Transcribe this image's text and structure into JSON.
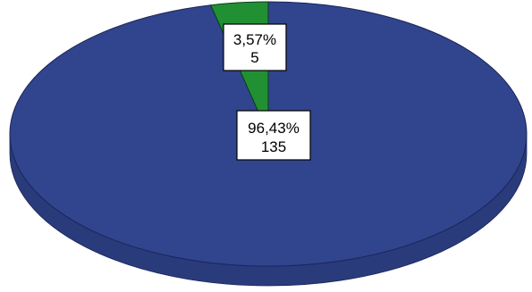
{
  "chart_data": {
    "type": "pie",
    "style": "3d",
    "slices": [
      {
        "percent_label": "96,43%",
        "count_label": "135",
        "value": 135,
        "percent": 96.43,
        "color": "#31448e",
        "side_color": "#2a3b7c"
      },
      {
        "percent_label": "3,57%",
        "count_label": "5",
        "value": 5,
        "percent": 3.57,
        "color": "#219033",
        "side_color": "#1a7a2a"
      }
    ],
    "title": "",
    "legend": "none"
  }
}
